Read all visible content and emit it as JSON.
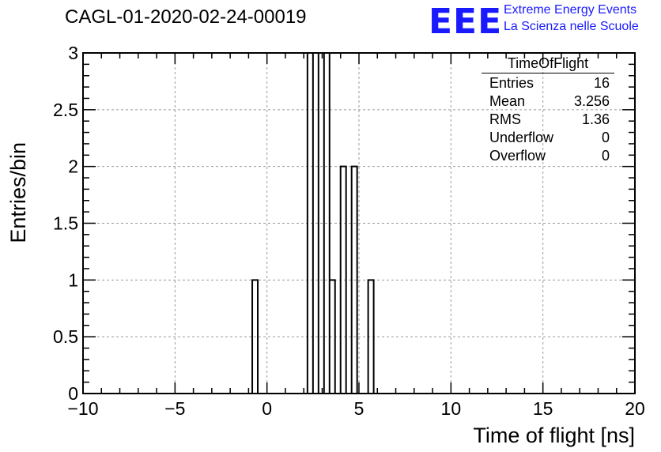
{
  "header": {
    "title": "CAGL-01-2020-02-24-00019",
    "logo_text": "EEE",
    "logo_line1": "Extreme Energy Events",
    "logo_line2": "La Scienza nelle Scuole"
  },
  "stats": {
    "name": "TimeOfFlight",
    "rows": [
      {
        "label": "Entries",
        "value": "16"
      },
      {
        "label": "Mean",
        "value": "3.256"
      },
      {
        "label": "RMS",
        "value": "1.36"
      },
      {
        "label": "Underflow",
        "value": "0"
      },
      {
        "label": "Overflow",
        "value": "0"
      }
    ]
  },
  "chart_data": {
    "type": "bar",
    "histogram": true,
    "title": "CAGL-01-2020-02-24-00019",
    "xlabel": "Time of flight [ns]",
    "ylabel": "Entries/bin",
    "xlim": [
      -10,
      20
    ],
    "ylim": [
      0,
      3
    ],
    "grid": true,
    "bin_width": 0.3,
    "bins": [
      {
        "x0": -0.8,
        "x1": -0.5,
        "count": 1
      },
      {
        "x0": 2.2,
        "x1": 2.5,
        "count": 3
      },
      {
        "x0": 2.5,
        "x1": 2.8,
        "count": 3
      },
      {
        "x0": 3.1,
        "x1": 3.4,
        "count": 3
      },
      {
        "x0": 3.4,
        "x1": 3.7,
        "count": 1
      },
      {
        "x0": 4.0,
        "x1": 4.3,
        "count": 2
      },
      {
        "x0": 4.6,
        "x1": 4.9,
        "count": 2
      },
      {
        "x0": 5.5,
        "x1": 5.8,
        "count": 1
      }
    ],
    "x_ticks": [
      -10,
      -5,
      0,
      5,
      10,
      15,
      20
    ],
    "x_tick_labels": [
      "−10",
      "−5",
      "0",
      "5",
      "10",
      "15",
      "20"
    ],
    "y_ticks": [
      0,
      0.5,
      1,
      1.5,
      2,
      2.5,
      3
    ],
    "y_tick_labels": [
      "0",
      "0.5",
      "1",
      "1.5",
      "2",
      "2.5",
      "3"
    ]
  }
}
